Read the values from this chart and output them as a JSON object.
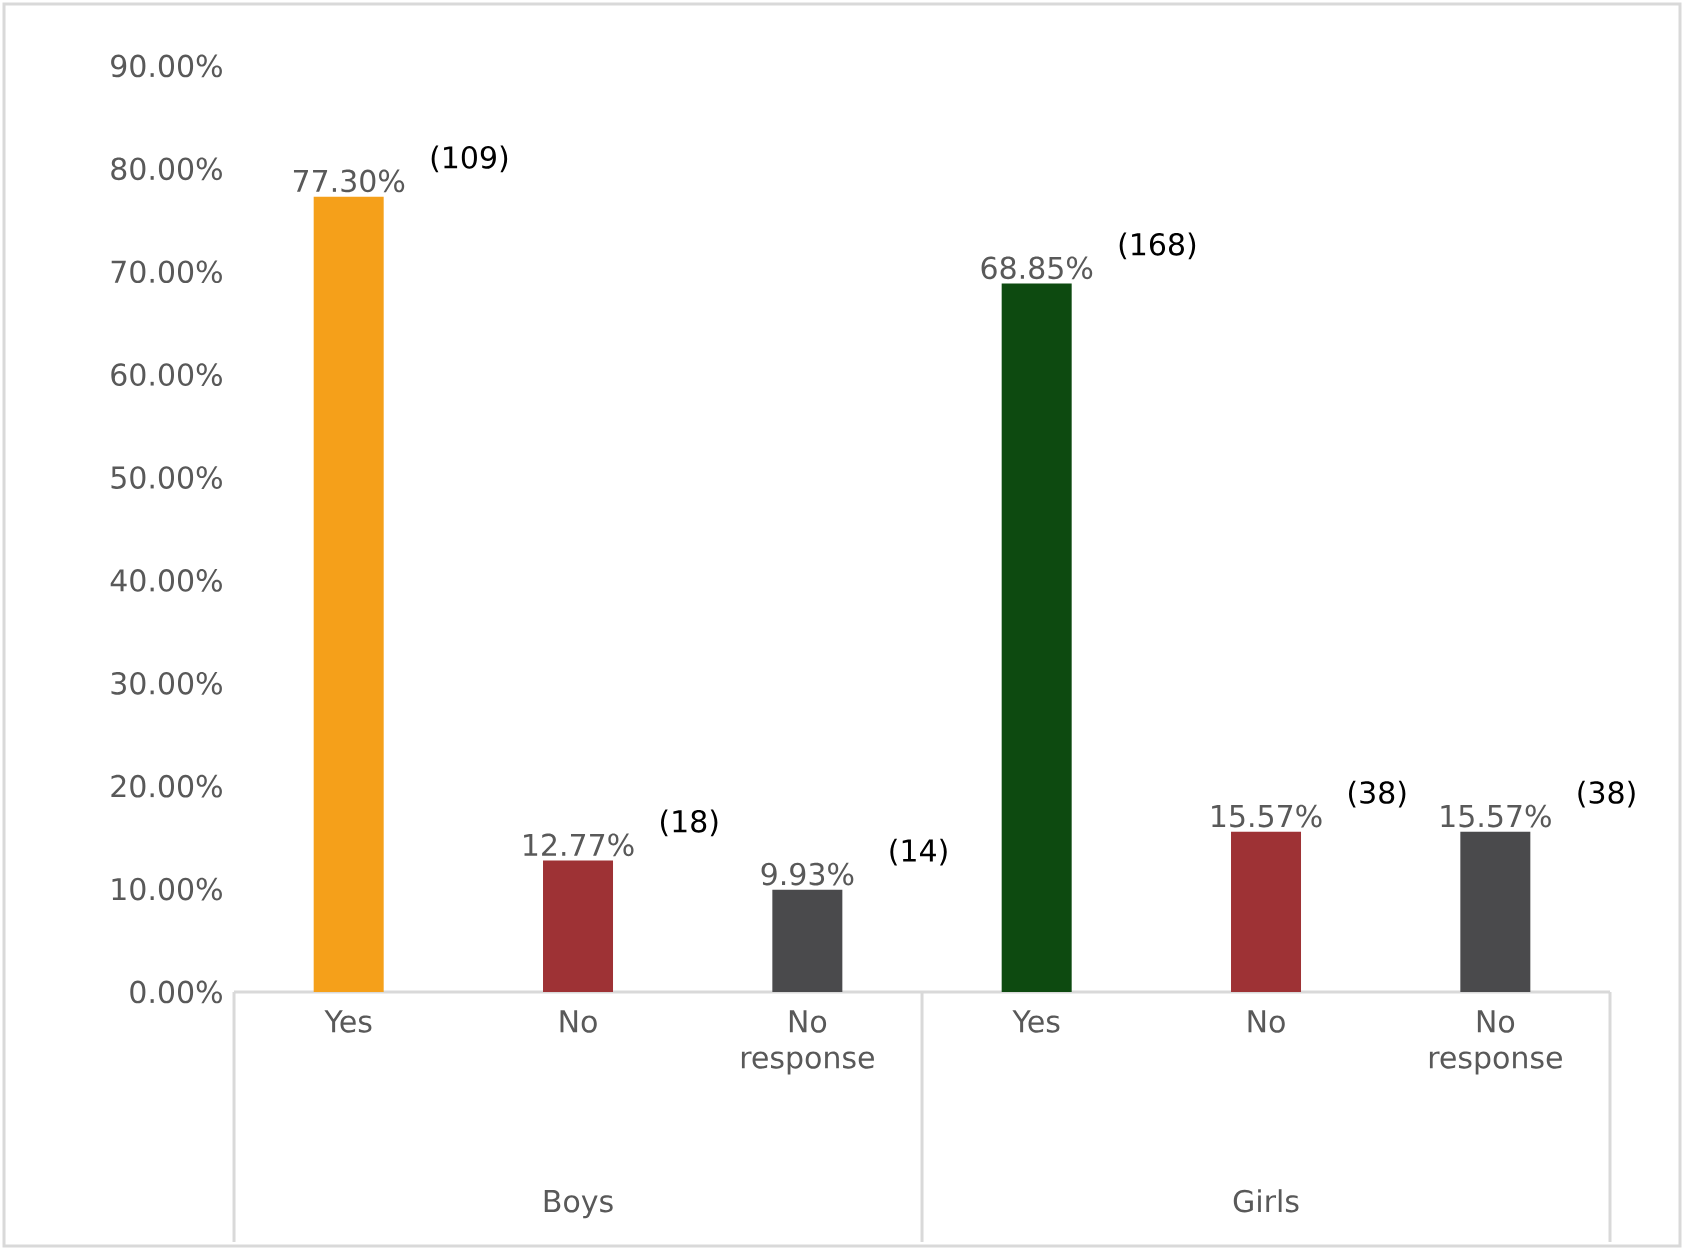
{
  "chart_data": {
    "type": "bar",
    "categories": [
      "Yes",
      "No",
      "No response",
      "Yes",
      "No",
      "No response"
    ],
    "values": [
      77.3,
      12.77,
      9.93,
      68.85,
      15.57,
      15.57
    ],
    "colors": [
      "#f5a01a",
      "#9e3235",
      "#4a4a4c",
      "#0d4a10",
      "#9e3235",
      "#4a4a4c"
    ],
    "value_labels": [
      "77.30%",
      "12.77%",
      "9.93%",
      "68.85%",
      "15.57%",
      "15.57%"
    ],
    "annotations": [
      "(109)",
      "(18)",
      "(14)",
      "(168)",
      "(38)",
      "(38)",
      "Boys",
      "Girls"
    ],
    "ylim": [
      0,
      90
    ],
    "yticks": [
      {
        "value": 0,
        "label": "0.00%"
      },
      {
        "value": 10,
        "label": "10.00%"
      },
      {
        "value": 20,
        "label": "20.00%"
      },
      {
        "value": 30,
        "label": "30.00%"
      },
      {
        "value": 40,
        "label": "40.00%"
      },
      {
        "value": 50,
        "label": "50.00%"
      },
      {
        "value": 60,
        "label": "60.00%"
      },
      {
        "value": 70,
        "label": "70.00%"
      },
      {
        "value": 80,
        "label": "80.00%"
      },
      {
        "value": 90,
        "label": "90.00%"
      }
    ]
  }
}
